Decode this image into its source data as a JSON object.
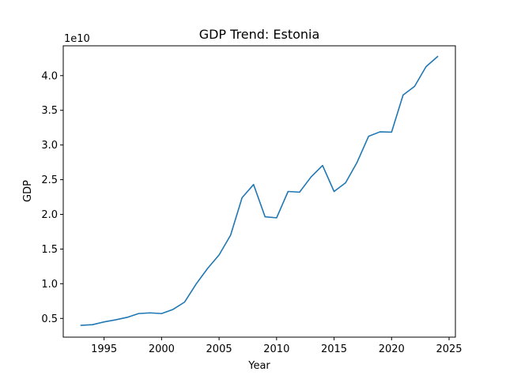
{
  "chart_data": {
    "type": "line",
    "title": "GDP Trend: Estonia",
    "xlabel": "Year",
    "ylabel": "GDP",
    "y_offset_text": "1e10",
    "y_scale": 10000000000,
    "xlim": [
      1991.45,
      2025.55
    ],
    "ylim": [
      2.3,
      44.3
    ],
    "x_ticks": [
      1995,
      2000,
      2005,
      2010,
      2015,
      2020,
      2025
    ],
    "x_tick_labels": [
      "1995",
      "2000",
      "2005",
      "2010",
      "2015",
      "2020",
      "2025"
    ],
    "y_ticks": [
      5,
      10,
      15,
      20,
      25,
      30,
      35,
      40
    ],
    "y_tick_labels": [
      "0.5",
      "1.0",
      "1.5",
      "2.0",
      "2.5",
      "3.0",
      "3.5",
      "4.0"
    ],
    "grid": false,
    "line_color": "#1f77b4",
    "series": [
      {
        "name": "Estonia",
        "x": [
          1993,
          1994,
          1995,
          1996,
          1997,
          1998,
          1999,
          2000,
          2001,
          2002,
          2003,
          2004,
          2005,
          2006,
          2007,
          2008,
          2009,
          2010,
          2011,
          2012,
          2013,
          2014,
          2015,
          2016,
          2017,
          2018,
          2019,
          2020,
          2021,
          2022,
          2023,
          2024
        ],
        "values": [
          4.0,
          4.1,
          4.5,
          4.8,
          5.15,
          5.7,
          5.8,
          5.7,
          6.3,
          7.35,
          9.95,
          12.2,
          14.15,
          17.0,
          22.4,
          24.3,
          19.65,
          19.5,
          23.3,
          23.2,
          25.4,
          27.05,
          23.3,
          24.55,
          27.5,
          31.25,
          31.9,
          31.85,
          37.2,
          38.45,
          41.3,
          42.75
        ]
      }
    ]
  }
}
